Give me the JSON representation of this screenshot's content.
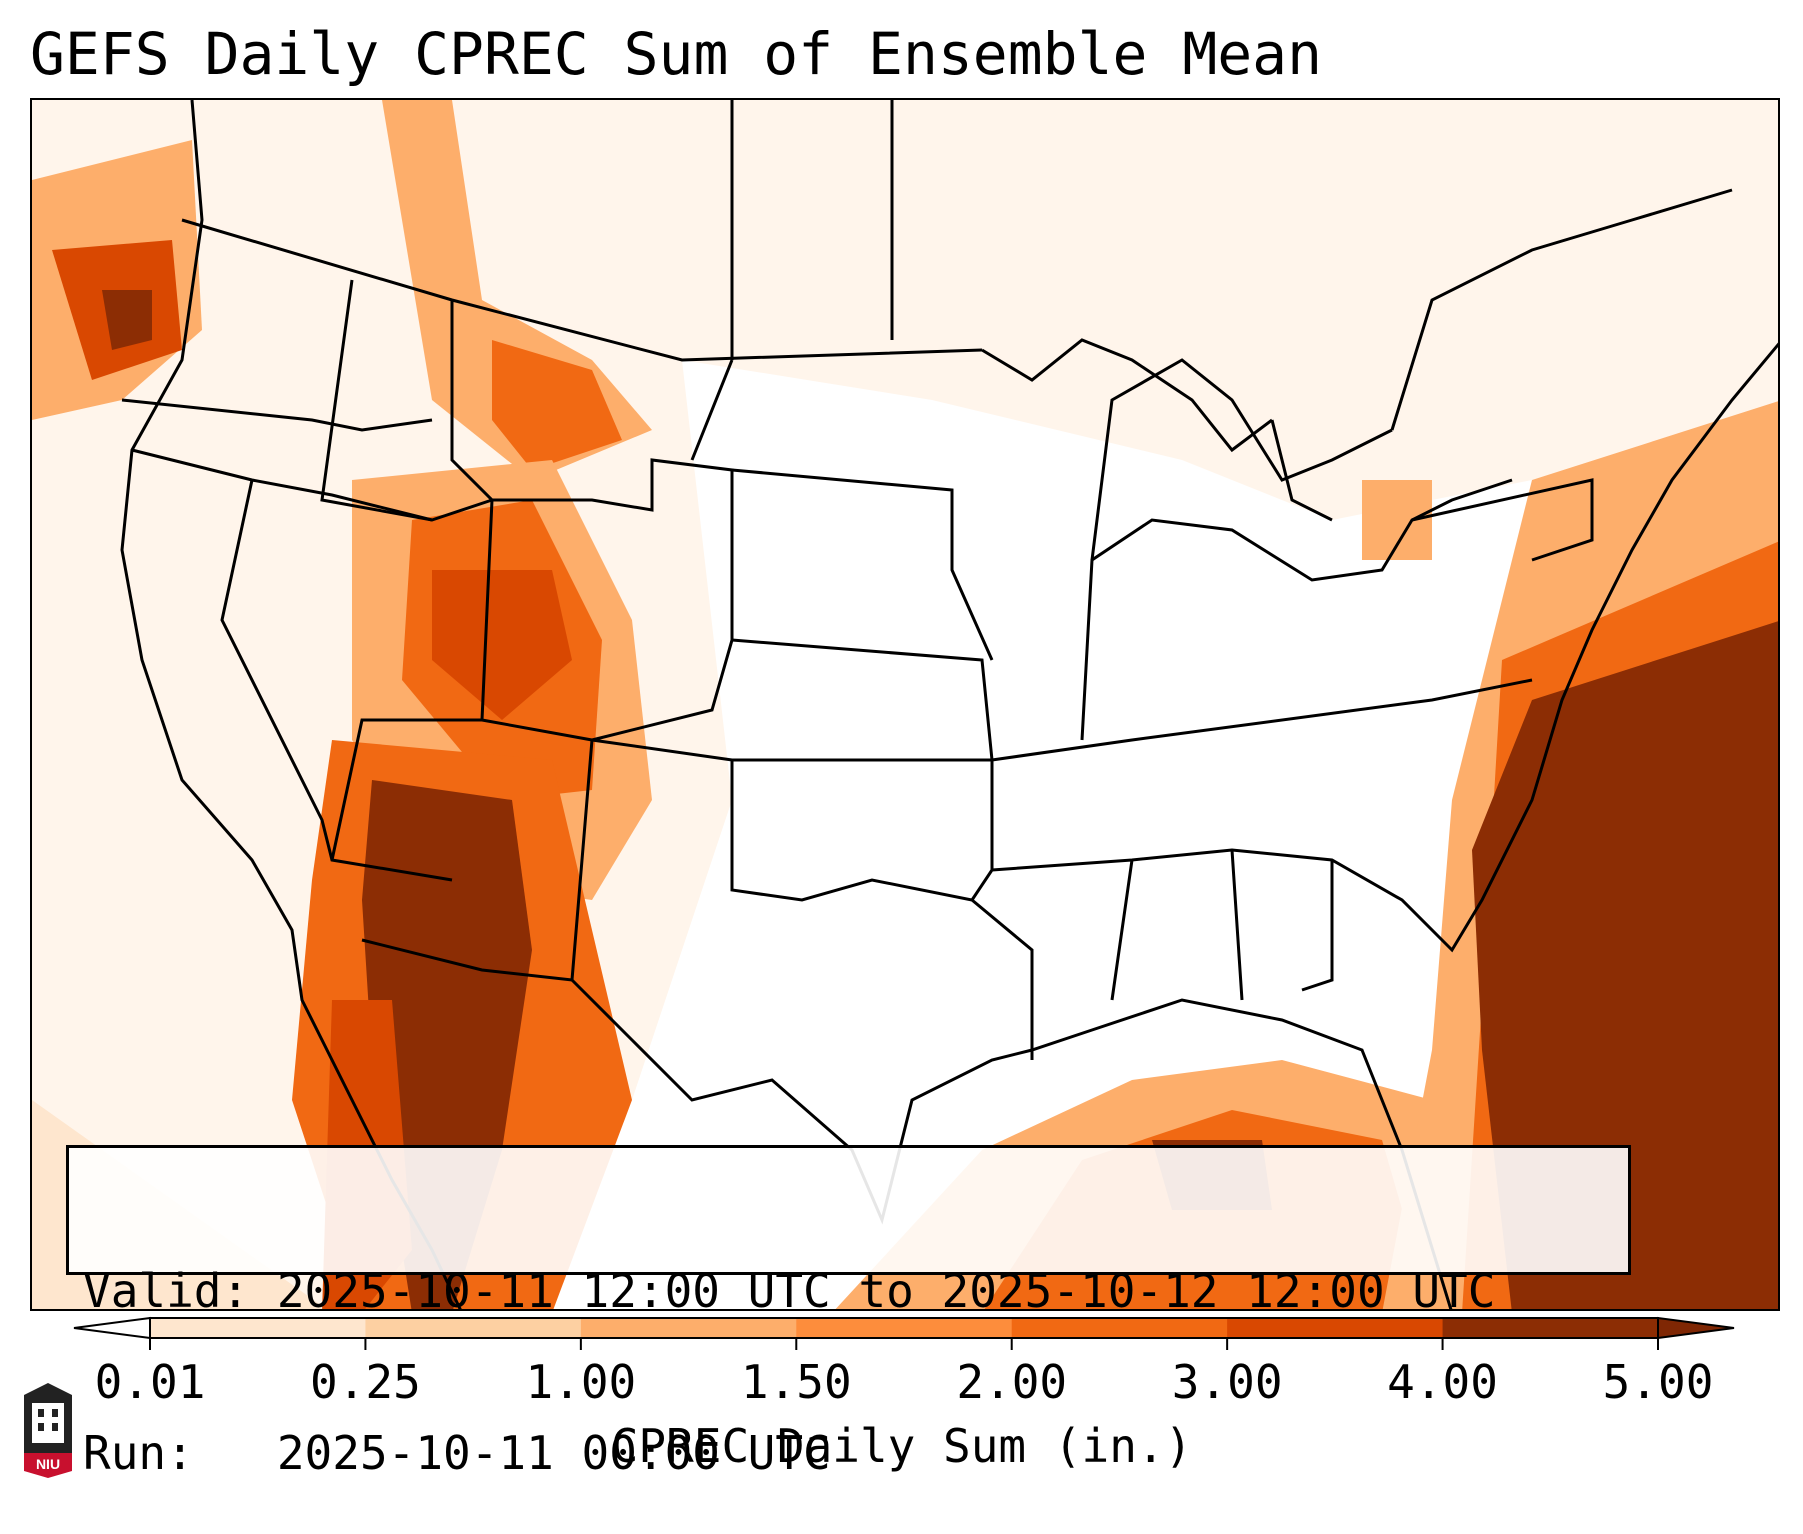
{
  "title": "GEFS Daily CPREC Sum of Ensemble Mean",
  "info": {
    "valid": "Valid: 2025-10-11 12:00 UTC to 2025-10-12 12:00 UTC",
    "run": "Run:   2025-10-11 00:00 UTC"
  },
  "colorbar": {
    "label": "CPREC Daily Sum (in.)",
    "ticks": [
      "0.01",
      "0.25",
      "1.00",
      "1.50",
      "2.00",
      "3.00",
      "4.00",
      "5.00"
    ],
    "colors": [
      "#fff5eb",
      "#fee6ce",
      "#fdd0a2",
      "#fdae6b",
      "#fd8d3c",
      "#f16913",
      "#d94801",
      "#8c2d04"
    ],
    "under_color": "#ffffff",
    "over_color": "#7f2704"
  },
  "logo": {
    "text": "NIU",
    "color": "#c8102e"
  },
  "colors": {
    "land": "#ffffff",
    "border": "#000000"
  }
}
